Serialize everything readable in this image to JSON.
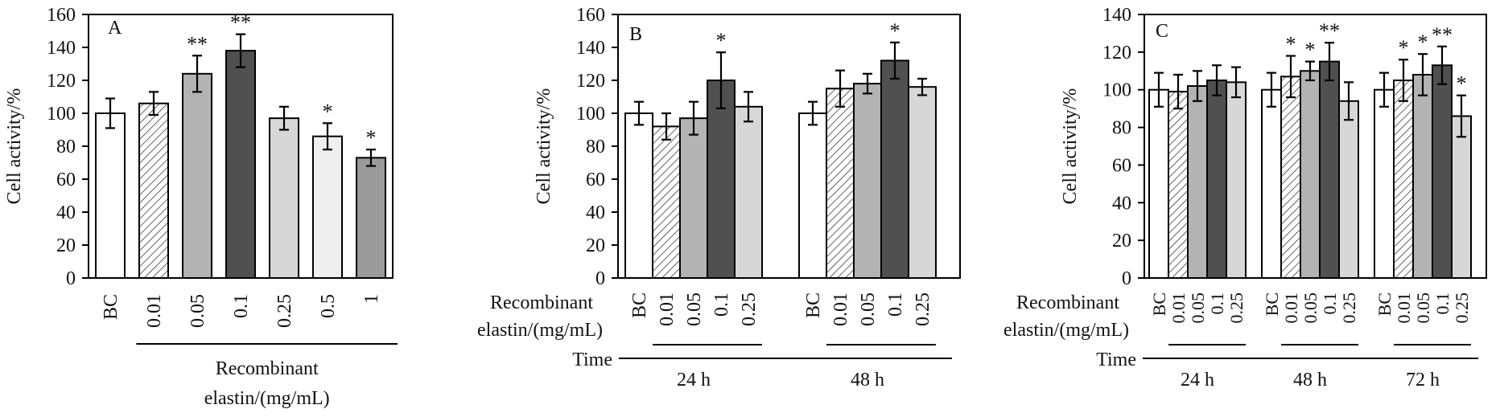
{
  "chart_data": [
    {
      "type": "bar",
      "panel_label": "A",
      "ylabel": "Cell activity/%",
      "ylim": [
        0,
        160
      ],
      "yticks": [
        0,
        20,
        40,
        60,
        80,
        100,
        120,
        140,
        160
      ],
      "categories": [
        "BC",
        "0.01",
        "0.05",
        "0.1",
        "0.25",
        "0.5",
        "1"
      ],
      "values": [
        100,
        106,
        124,
        138,
        97,
        86,
        73
      ],
      "errors": [
        9,
        7,
        11,
        10,
        7,
        8,
        5
      ],
      "significance": [
        "",
        "",
        "**",
        "**",
        "",
        "*",
        "*"
      ],
      "fills": [
        "#ffffff",
        "hatch",
        "#b3b3b3",
        "#505050",
        "#d7d7d7",
        "#efefef",
        "#9a9a9a"
      ],
      "group_label": "Recombinant elastin/(mg/mL)"
    },
    {
      "type": "bar",
      "panel_label": "B",
      "ylabel": "Cell activity/%",
      "ylim": [
        0,
        160
      ],
      "yticks": [
        0,
        20,
        40,
        60,
        80,
        100,
        120,
        140,
        160
      ],
      "categories": [
        "BC",
        "0.01",
        "0.05",
        "0.1",
        "0.25"
      ],
      "groups": [
        {
          "time": "24 h",
          "values": [
            100,
            92,
            97,
            120,
            104
          ],
          "errors": [
            7,
            8,
            10,
            17,
            9
          ],
          "significance": [
            "",
            "",
            "",
            "*",
            ""
          ]
        },
        {
          "time": "48 h",
          "values": [
            100,
            115,
            118,
            132,
            116
          ],
          "errors": [
            7,
            11,
            6,
            11,
            5
          ],
          "significance": [
            "",
            "",
            "",
            "*",
            ""
          ]
        }
      ],
      "fills": [
        "#ffffff",
        "hatch",
        "#b3b3b3",
        "#505050",
        "#d7d7d7"
      ],
      "category_axis_title": "Recombinant elastin/(mg/mL)",
      "time_axis_title": "Time"
    },
    {
      "type": "bar",
      "panel_label": "C",
      "ylabel": "Cell activity/%",
      "ylim": [
        0,
        140
      ],
      "yticks": [
        0,
        20,
        40,
        60,
        80,
        100,
        120,
        140
      ],
      "categories": [
        "BC",
        "0.01",
        "0.05",
        "0.1",
        "0.25"
      ],
      "groups": [
        {
          "time": "24 h",
          "values": [
            100,
            99,
            102,
            105,
            104
          ],
          "errors": [
            9,
            9,
            8,
            8,
            8
          ],
          "significance": [
            "",
            "",
            "",
            "",
            ""
          ]
        },
        {
          "time": "48 h",
          "values": [
            100,
            107,
            110,
            115,
            94
          ],
          "errors": [
            9,
            11,
            5,
            10,
            10
          ],
          "significance": [
            "",
            "*",
            "*",
            "**",
            ""
          ]
        },
        {
          "time": "72 h",
          "values": [
            100,
            105,
            108,
            113,
            86
          ],
          "errors": [
            9,
            11,
            11,
            10,
            11
          ],
          "significance": [
            "",
            "*",
            "*",
            "**",
            "*"
          ]
        }
      ],
      "fills": [
        "#ffffff",
        "hatch",
        "#b3b3b3",
        "#505050",
        "#d7d7d7"
      ],
      "category_axis_title": "Recombinant elastin/(mg/mL)",
      "time_axis_title": "Time"
    }
  ]
}
